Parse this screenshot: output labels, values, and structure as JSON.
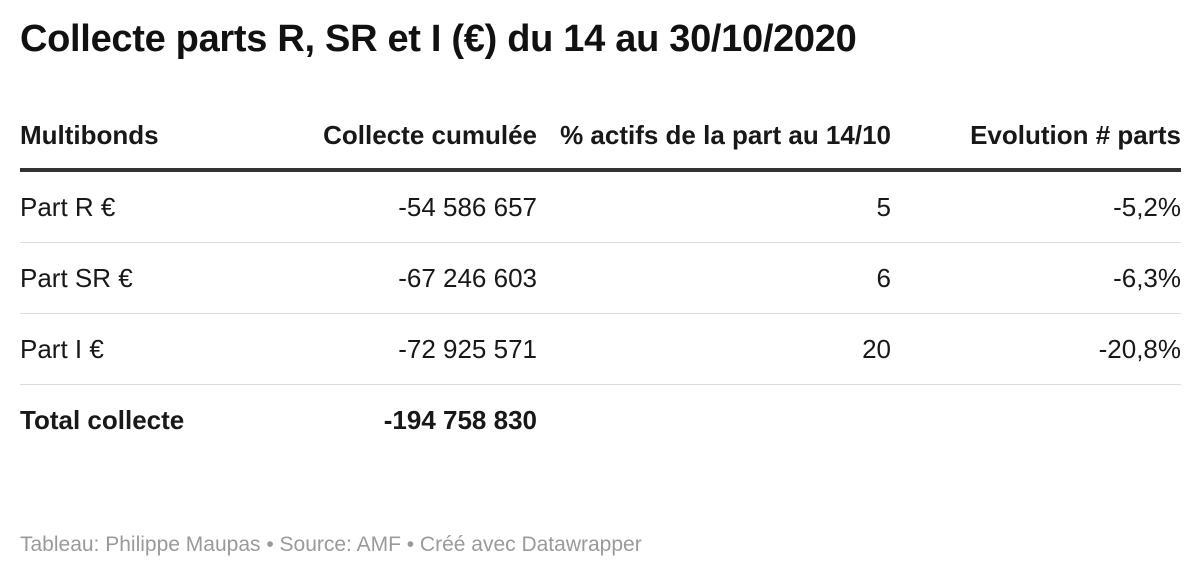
{
  "title": "Collecte parts R, SR et I (€) du 14 au 30/10/2020",
  "columns": [
    "Multibonds",
    "Collecte cumulée",
    "% actifs de la part au 14/10",
    "Evolution # parts"
  ],
  "rows": [
    [
      "Part R €",
      "-54 586 657",
      "5",
      "-5,2%"
    ],
    [
      "Part SR €",
      "-67 246 603",
      "6",
      "-6,3%"
    ],
    [
      "Part I €",
      "-72 925 571",
      "20",
      "-20,8%"
    ],
    [
      "Total collecte",
      "-194 758 830",
      "",
      ""
    ]
  ],
  "footer": "Tableau: Philippe Maupas • Source: AMF • Créé avec Datawrapper",
  "chart_data": {
    "type": "table",
    "title": "Collecte parts R, SR et I (€) du 14 au 30/10/2020",
    "columns": [
      "Multibonds",
      "Collecte cumulée",
      "% actifs de la part au 14/10",
      "Evolution # parts"
    ],
    "rows": [
      {
        "label": "Part R €",
        "collecte_cumulee": -54586657,
        "pct_actifs": 5,
        "evolution_parts_pct": -5.2
      },
      {
        "label": "Part SR €",
        "collecte_cumulee": -67246603,
        "pct_actifs": 6,
        "evolution_parts_pct": -6.3
      },
      {
        "label": "Part I €",
        "collecte_cumulee": -72925571,
        "pct_actifs": 20,
        "evolution_parts_pct": -20.8
      },
      {
        "label": "Total collecte",
        "collecte_cumulee": -194758830,
        "pct_actifs": null,
        "evolution_parts_pct": null
      }
    ]
  }
}
